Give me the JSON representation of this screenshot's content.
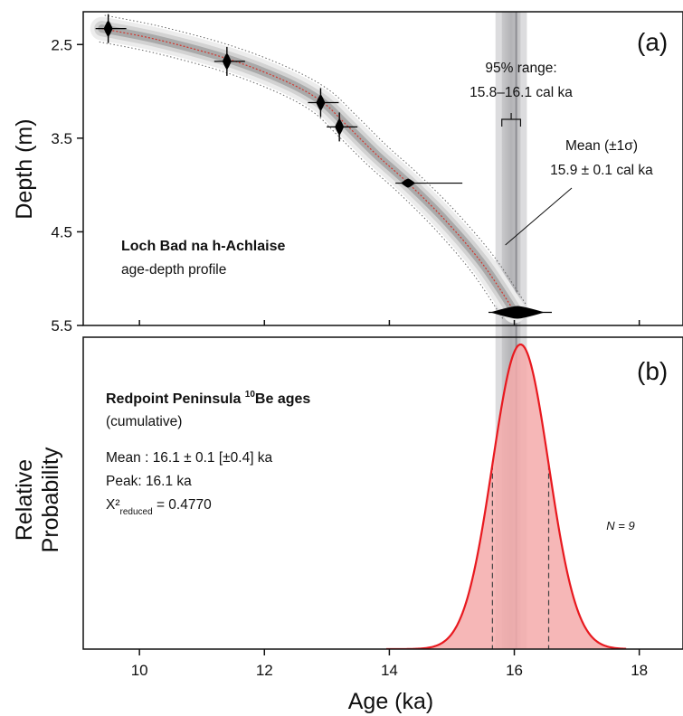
{
  "chart_data": [
    {
      "panel_label": "(a)",
      "type": "scatter",
      "ylabel": "Depth (m)",
      "xlim": [
        9.1,
        18.7
      ],
      "ylim": [
        5.5,
        2.15
      ],
      "yticks": [
        2.5,
        3.5,
        4.5,
        5.5
      ],
      "ytick_labels": [
        "2.5",
        "3.5",
        "4.5",
        "5.5"
      ],
      "title_bold": "Loch Bad na h-Achlaise",
      "subtitle": "age-depth profile",
      "dated_points": [
        {
          "age": 9.5,
          "depth": 2.33
        },
        {
          "age": 11.4,
          "depth": 2.68
        },
        {
          "age": 12.9,
          "depth": 3.12
        },
        {
          "age": 13.2,
          "depth": 3.38
        },
        {
          "age": 14.3,
          "depth": 3.98
        },
        {
          "age": 16.05,
          "depth": 5.36
        }
      ],
      "model_curve": [
        {
          "age": 9.4,
          "depth": 2.33
        },
        {
          "age": 10.3,
          "depth": 2.45
        },
        {
          "age": 11.4,
          "depth": 2.65
        },
        {
          "age": 12.3,
          "depth": 2.88
        },
        {
          "age": 12.9,
          "depth": 3.1
        },
        {
          "age": 13.3,
          "depth": 3.35
        },
        {
          "age": 13.8,
          "depth": 3.68
        },
        {
          "age": 14.3,
          "depth": 3.98
        },
        {
          "age": 14.9,
          "depth": 4.38
        },
        {
          "age": 15.5,
          "depth": 4.85
        },
        {
          "age": 16.0,
          "depth": 5.35
        }
      ],
      "band_95_label_line1": "95% range:",
      "band_95_label_line2": "15.8–16.1 cal ka",
      "band_95": [
        15.8,
        16.1
      ],
      "mean_label_line1": "Mean (±1σ)",
      "mean_label_line2": "15.9 ± 0.1 cal ka",
      "mean": 15.9,
      "mean_sigma": 0.1
    },
    {
      "panel_label": "(b)",
      "type": "area",
      "xlabel": "Age (ka)",
      "ylabel_line1": "Relative",
      "ylabel_line2": "Probability",
      "xlim": [
        9.1,
        18.7
      ],
      "xticks": [
        10,
        12,
        14,
        16,
        18
      ],
      "xtick_labels": [
        "10",
        "12",
        "14",
        "16",
        "18"
      ],
      "title_bold": "Redpoint Peninsula ",
      "title_sup": "10",
      "title_bold_end": "Be ages",
      "subtitle": "(cumulative)",
      "stats_mean": "Mean :  16.1 ± 0.1 [±0.4] ka",
      "stats_peak": "Peak: 16.1 ka",
      "stats_chi_a": "X²",
      "stats_chi_sub": "reduced",
      "stats_chi_b": " = 0.4770",
      "n_label": "N = 9",
      "distribution": {
        "peak": 16.1,
        "sigma": 0.45,
        "from": 13.95,
        "to": 17.8
      },
      "dashed_lines": [
        15.65,
        16.55
      ],
      "fill_color": "#f4aaaa",
      "line_color": "#e8191f"
    }
  ]
}
